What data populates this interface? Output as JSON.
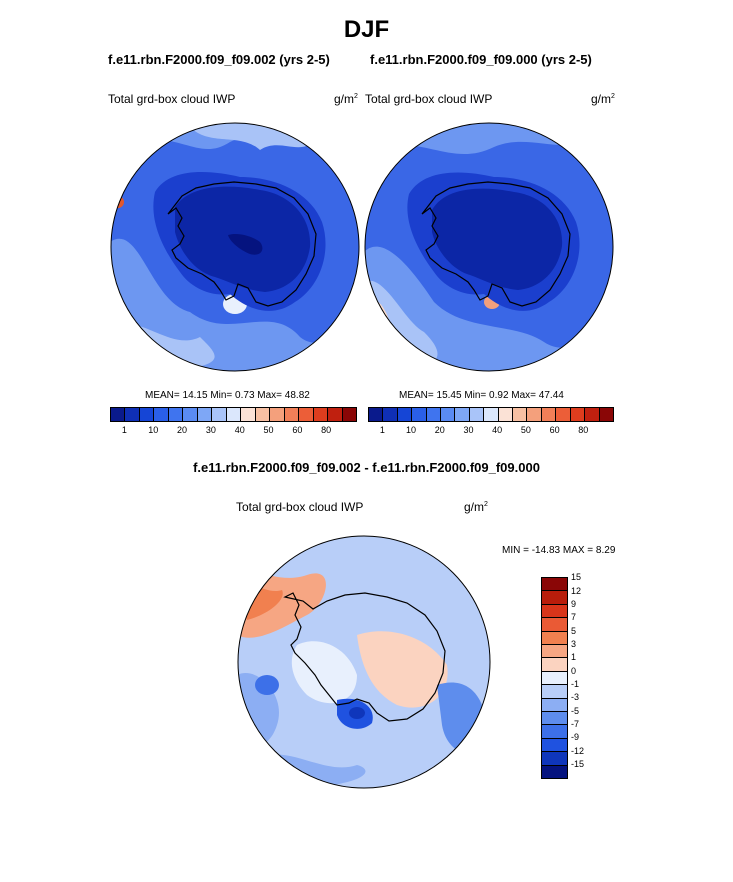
{
  "page": {
    "title": "DJF",
    "diff_title": "f.e11.rbn.F2000.f09_f09.002 - f.e11.rbn.F2000.f09_f09.000"
  },
  "panels": [
    {
      "case": "f.e11.rbn.F2000.f09_f09.002 (yrs 2-5)",
      "variable": "Total grd-box cloud IWP",
      "units": "g/m",
      "units_sup": "2",
      "stats": "MEAN= 14.15  Min=   0.73  Max=  48.82"
    },
    {
      "case": "f.e11.rbn.F2000.f09_f09.000 (yrs 2-5)",
      "variable": "Total grd-box cloud IWP",
      "units": "g/m",
      "units_sup": "2",
      "stats": "MEAN= 15.45  Min=   0.92  Max=  47.44"
    }
  ],
  "diff_panel": {
    "variable": "Total grd-box cloud IWP",
    "units": "g/m",
    "units_sup": "2",
    "stats": "MIN = -14.83 MAX =   8.29"
  },
  "colorbar_abs": {
    "colors": [
      "#0a1a8c",
      "#0f2fb5",
      "#1545d6",
      "#2a5fe8",
      "#3f74ef",
      "#5a8bf3",
      "#7ea7f6",
      "#a9c4f9",
      "#dbe7fc",
      "#fbe2d6",
      "#f7c0a3",
      "#f4a07c",
      "#f17f58",
      "#ec5e38",
      "#de3d1e",
      "#c0200f",
      "#8a0606"
    ],
    "labels": [
      "1",
      "10",
      "20",
      "30",
      "40",
      "50",
      "60",
      "80"
    ]
  },
  "colorbar_diff": {
    "colors": [
      "#8a0606",
      "#b81d0b",
      "#d8351a",
      "#ea5a35",
      "#f1804f",
      "#f6a683",
      "#fbd3c0",
      "#e8f0fd",
      "#b8cef8",
      "#8caef3",
      "#5e8ded",
      "#3d70e8",
      "#1f52e0",
      "#0f36bb",
      "#05137f"
    ],
    "labels": [
      "15",
      "12",
      "9",
      "7",
      "5",
      "3",
      "1",
      "0",
      "-1",
      "-3",
      "-5",
      "-7",
      "-9",
      "-12",
      "-15"
    ]
  },
  "map_colors": {
    "deep": "#0c26a6",
    "dark": "#1b3fce",
    "mid": "#3a67e6",
    "light": "#6d97f1",
    "pale": "#a9c3f7",
    "white": "#e9f0fd",
    "peach": "#f9d9c9",
    "orange": "#f2a07d",
    "red": "#e0582f",
    "coast": "#000000"
  }
}
